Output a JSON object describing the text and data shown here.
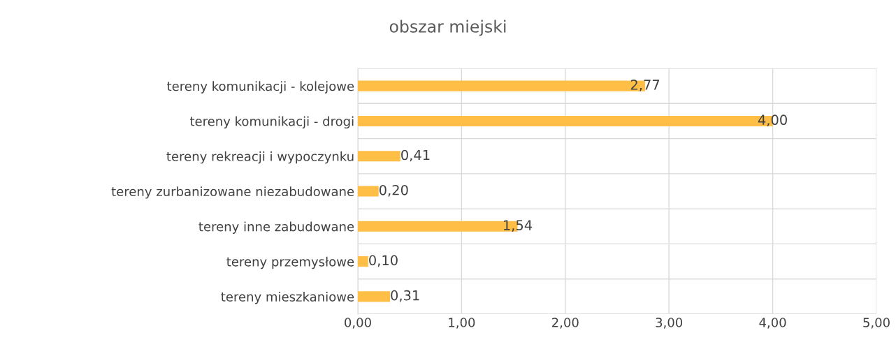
{
  "chart_data": {
    "type": "bar",
    "orientation": "horizontal",
    "title": "obszar miejski",
    "categories": [
      "tereny komunikacji - kolejowe",
      "tereny komunikacji - drogi",
      "tereny rekreacji i wypoczynku",
      "tereny zurbanizowane niezabudowane",
      "tereny inne zabudowane",
      "tereny przemysłowe",
      "tereny mieszkaniowe"
    ],
    "values": [
      2.77,
      4.0,
      0.41,
      0.2,
      1.54,
      0.1,
      0.31
    ],
    "value_labels": [
      "2,77",
      "4,00",
      "0,41",
      "0,20",
      "1,54",
      "0,10",
      "0,31"
    ],
    "color": "#ffbf47",
    "xlim": [
      0,
      5
    ],
    "xticks": [
      {
        "value": 0,
        "label": "0,00"
      },
      {
        "value": 1,
        "label": "1,00"
      },
      {
        "value": 2,
        "label": "2,00"
      },
      {
        "value": 3,
        "label": "3,00"
      },
      {
        "value": 4,
        "label": "4,00"
      },
      {
        "value": 5,
        "label": "5,00"
      }
    ],
    "grid": true
  }
}
